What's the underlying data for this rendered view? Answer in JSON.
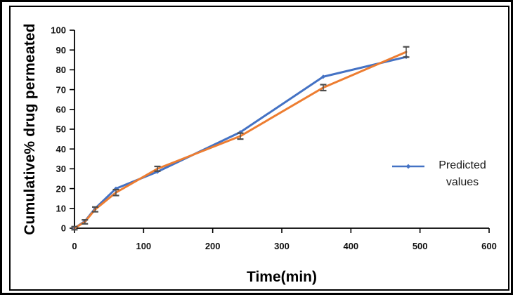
{
  "chart_data": {
    "type": "line",
    "title": "",
    "xlabel": "Time(min)",
    "ylabel": "Cumulative% drug permeated",
    "legend_label": "Predicted values",
    "legend_position": "right",
    "grid": false,
    "xlim": [
      0,
      600
    ],
    "ylim": [
      0,
      100
    ],
    "x_ticks": [
      0,
      100,
      200,
      300,
      400,
      500,
      600
    ],
    "y_ticks": [
      0,
      10,
      20,
      30,
      40,
      50,
      60,
      70,
      80,
      90,
      100
    ],
    "x": [
      0,
      15,
      30,
      60,
      120,
      240,
      360,
      480
    ],
    "series": [
      {
        "name": "Predicted values",
        "color": "#4472C4",
        "values": [
          0,
          3.5,
          10,
          20,
          28.5,
          48.5,
          76.5,
          86.5
        ],
        "marker": "diamond",
        "in_legend": true
      },
      {
        "name": "",
        "color": "#ED7D31",
        "values": [
          0,
          3.2,
          9.5,
          18,
          30,
          46.5,
          71,
          89
        ],
        "error_bars": [
          0.8,
          1,
          1.2,
          1.5,
          1.2,
          1.5,
          1.5,
          2.6
        ],
        "marker": "none",
        "in_legend": false
      }
    ],
    "colors": {
      "axis": "#000000",
      "error_bar": "#4d4d4d",
      "tick_label": "#111111"
    }
  }
}
